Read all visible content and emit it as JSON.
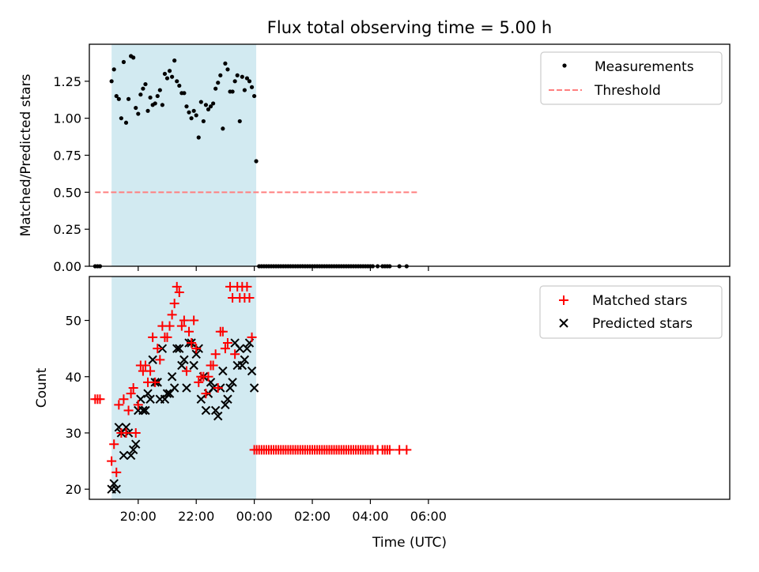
{
  "chart_data": {
    "type": "scatter",
    "title": "Flux total observing time = 5.00 h",
    "xlabel": "Time (UTC)",
    "x_unit": "minutes after 18:00 UTC",
    "xlim": [
      19,
      1343
    ],
    "x_ticks": [
      {
        "value": 120,
        "label": "20:00"
      },
      {
        "value": 240,
        "label": "22:00"
      },
      {
        "value": 360,
        "label": "00:00"
      },
      {
        "value": 480,
        "label": "02:00"
      },
      {
        "value": 600,
        "label": "04:00"
      },
      {
        "value": 720,
        "label": "06:00"
      }
    ],
    "observing_window": [
      65,
      364
    ],
    "colors": {
      "shade": "#add8e6",
      "matched": "#ff0000",
      "predicted": "#000000",
      "threshold": "#ff7f7f",
      "measurement": "#000000"
    },
    "top": {
      "ylabel": "Matched/Predicted stars",
      "ylim": [
        0,
        1.5
      ],
      "y_ticks": [
        "0.00",
        "0.25",
        "0.50",
        "0.75",
        "1.00",
        "1.25"
      ],
      "legend": {
        "position": "top-right",
        "measurements": "Measurements",
        "threshold": "Threshold"
      },
      "threshold": {
        "value": 0.5,
        "x_start": 31,
        "x_end": 700
      },
      "measurements": {
        "x": [
          31,
          36,
          41,
          65,
          70,
          75,
          80,
          85,
          90,
          95,
          100,
          105,
          110,
          115,
          120,
          125,
          130,
          135,
          140,
          145,
          150,
          155,
          160,
          165,
          170,
          175,
          180,
          185,
          190,
          195,
          200,
          205,
          210,
          215,
          220,
          225,
          230,
          235,
          240,
          245,
          250,
          255,
          260,
          265,
          270,
          275,
          280,
          285,
          290,
          295,
          300,
          305,
          310,
          315,
          320,
          325,
          330,
          335,
          340,
          345,
          350,
          355,
          360,
          364,
          370,
          375,
          380,
          385,
          390,
          395,
          400,
          405,
          410,
          415,
          420,
          425,
          430,
          435,
          440,
          445,
          450,
          455,
          460,
          465,
          470,
          475,
          480,
          485,
          490,
          495,
          500,
          505,
          510,
          515,
          520,
          525,
          530,
          535,
          540,
          545,
          550,
          555,
          560,
          565,
          570,
          575,
          580,
          585,
          590,
          595,
          600,
          605,
          615,
          625,
          630,
          635,
          640,
          660,
          675
        ],
        "y": [
          0,
          0,
          0,
          1.25,
          1.33,
          1.15,
          1.13,
          1.0,
          1.38,
          0.97,
          1.13,
          1.42,
          1.41,
          1.07,
          1.03,
          1.16,
          1.2,
          1.23,
          1.05,
          1.14,
          1.09,
          1.1,
          1.15,
          1.19,
          1.09,
          1.3,
          1.27,
          1.32,
          1.28,
          1.39,
          1.25,
          1.22,
          1.17,
          1.17,
          1.08,
          1.04,
          1.0,
          1.05,
          1.02,
          0.87,
          1.11,
          0.98,
          1.09,
          1.06,
          1.08,
          1.1,
          1.2,
          1.24,
          1.29,
          0.93,
          1.37,
          1.33,
          1.18,
          1.18,
          1.25,
          1.29,
          0.98,
          1.28,
          1.19,
          1.27,
          1.25,
          1.21,
          1.15,
          0.71,
          0,
          0,
          0,
          0,
          0,
          0,
          0,
          0,
          0,
          0,
          0,
          0,
          0,
          0,
          0,
          0,
          0,
          0,
          0,
          0,
          0,
          0,
          0,
          0,
          0,
          0,
          0,
          0,
          0,
          0,
          0,
          0,
          0,
          0,
          0,
          0,
          0,
          0,
          0,
          0,
          0,
          0,
          0,
          0,
          0,
          0,
          0,
          0,
          0,
          0,
          0,
          0,
          0,
          0,
          0
        ]
      }
    },
    "bottom": {
      "ylabel": "Count",
      "ylim": [
        18.2,
        57.8
      ],
      "y_ticks": [
        "20",
        "30",
        "40",
        "50"
      ],
      "legend": {
        "position": "top-right",
        "matched": "Matched stars",
        "predicted": "Predicted stars"
      },
      "matched": {
        "x": [
          31,
          36,
          41,
          65,
          70,
          75,
          80,
          85,
          90,
          95,
          100,
          105,
          110,
          115,
          120,
          125,
          130,
          135,
          140,
          145,
          150,
          155,
          160,
          165,
          170,
          175,
          180,
          185,
          190,
          195,
          200,
          205,
          210,
          215,
          220,
          225,
          230,
          235,
          240,
          245,
          250,
          255,
          260,
          265,
          270,
          275,
          280,
          285,
          290,
          295,
          300,
          305,
          310,
          315,
          320,
          325,
          330,
          335,
          340,
          345,
          350,
          355,
          360,
          365,
          370,
          375,
          380,
          385,
          390,
          395,
          400,
          405,
          410,
          415,
          420,
          425,
          430,
          435,
          440,
          445,
          450,
          455,
          460,
          465,
          470,
          475,
          480,
          485,
          490,
          495,
          500,
          505,
          510,
          515,
          520,
          525,
          530,
          535,
          540,
          545,
          550,
          555,
          560,
          565,
          570,
          575,
          580,
          585,
          590,
          595,
          600,
          605,
          615,
          625,
          630,
          635,
          640,
          660,
          675
        ],
        "y": [
          36,
          36,
          36,
          25,
          28,
          23,
          35,
          30,
          36,
          30,
          34,
          37,
          38,
          30,
          35,
          42,
          41,
          42,
          39,
          41,
          47,
          39,
          45,
          43,
          49,
          47,
          47,
          49,
          51,
          53,
          56,
          55,
          49,
          50,
          41,
          48,
          46,
          50,
          45,
          39,
          40,
          40,
          37,
          40,
          42,
          42,
          44,
          38,
          48,
          48,
          45,
          46,
          56,
          54,
          44,
          56,
          54,
          56,
          54,
          56,
          54,
          47,
          27,
          27,
          27,
          27,
          27,
          27,
          27,
          27,
          27,
          27,
          27,
          27,
          27,
          27,
          27,
          27,
          27,
          27,
          27,
          27,
          27,
          27,
          27,
          27,
          27,
          27,
          27,
          27,
          27,
          27,
          27,
          27,
          27,
          27,
          27,
          27,
          27,
          27,
          27,
          27,
          27,
          27,
          27,
          27,
          27,
          27,
          27,
          27,
          27,
          27,
          27,
          27,
          27,
          27,
          27,
          27,
          27
        ]
      },
      "predicted": {
        "x": [
          65,
          70,
          75,
          80,
          85,
          90,
          95,
          100,
          105,
          110,
          115,
          120,
          125,
          130,
          135,
          140,
          145,
          150,
          155,
          160,
          165,
          170,
          175,
          180,
          185,
          190,
          195,
          200,
          205,
          210,
          215,
          220,
          225,
          230,
          235,
          240,
          245,
          250,
          255,
          260,
          265,
          270,
          275,
          280,
          285,
          290,
          295,
          300,
          305,
          310,
          315,
          320,
          325,
          330,
          335,
          340,
          345,
          350,
          355,
          360
        ],
        "y": [
          20,
          21,
          20,
          31,
          30,
          26,
          31,
          30,
          26,
          27,
          28,
          34,
          36,
          34,
          34,
          37,
          36,
          43,
          39,
          39,
          36,
          45,
          36,
          37,
          37,
          40,
          38,
          45,
          45,
          42,
          43,
          38,
          46,
          46,
          42,
          44,
          45,
          36,
          40,
          34,
          37,
          39,
          38,
          34,
          33,
          38,
          41,
          35,
          36,
          38,
          39,
          46,
          42,
          45,
          42,
          43,
          45,
          46,
          41,
          38
        ]
      }
    }
  }
}
